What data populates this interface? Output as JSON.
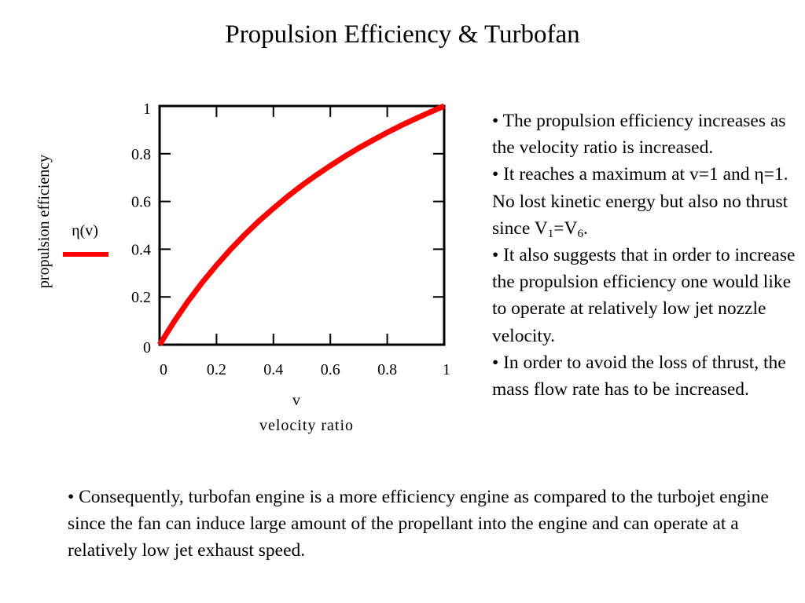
{
  "title": "Propulsion Efficiency & Turbofan",
  "chart_data": {
    "type": "line",
    "xlabel_var": "v",
    "xlabel": "velocity ratio",
    "ylabel": "propulsion efficiency",
    "xlim": [
      0,
      1
    ],
    "ylim": [
      0,
      1
    ],
    "x_ticks": [
      "0",
      "0.2",
      "0.4",
      "0.6",
      "0.8",
      "1"
    ],
    "y_ticks": [
      "0",
      "0.2",
      "0.4",
      "0.6",
      "0.8",
      "1"
    ],
    "grid": false,
    "legend": {
      "position": "left",
      "entries": [
        "η(v)"
      ]
    },
    "series": [
      {
        "name": "η(v)",
        "color": "#ff0000",
        "x": [
          0,
          0.05,
          0.1,
          0.15,
          0.2,
          0.25,
          0.3,
          0.35,
          0.4,
          0.45,
          0.5,
          0.55,
          0.6,
          0.65,
          0.7,
          0.75,
          0.8,
          0.85,
          0.9,
          0.95,
          1
        ],
        "values": [
          0,
          0.095,
          0.182,
          0.261,
          0.333,
          0.4,
          0.462,
          0.519,
          0.571,
          0.621,
          0.667,
          0.71,
          0.75,
          0.788,
          0.824,
          0.857,
          0.889,
          0.919,
          0.947,
          0.974,
          1
        ]
      }
    ]
  },
  "text_right": {
    "b1": "• The propulsion efficiency increases as the velocity ratio is increased.",
    "b2_a": "• It reaches a maximum at v=1 and η=1.  No lost kinetic energy but also no thrust since V",
    "b2_sub1": "1",
    "b2_b": "=V",
    "b2_sub2": "6",
    "b2_c": ".",
    "b3": "• It also suggests that in order to increase the propulsion efficiency one would like to operate at relatively low jet nozzle velocity.",
    "b4": "• In order to avoid the loss of thrust, the mass flow rate has to be increased."
  },
  "text_bottom": "• Consequently, turbofan engine is a more efficiency engine as compared to the turbojet engine since the fan can induce large amount of the propellant into the engine and can operate at a relatively low jet exhaust speed."
}
